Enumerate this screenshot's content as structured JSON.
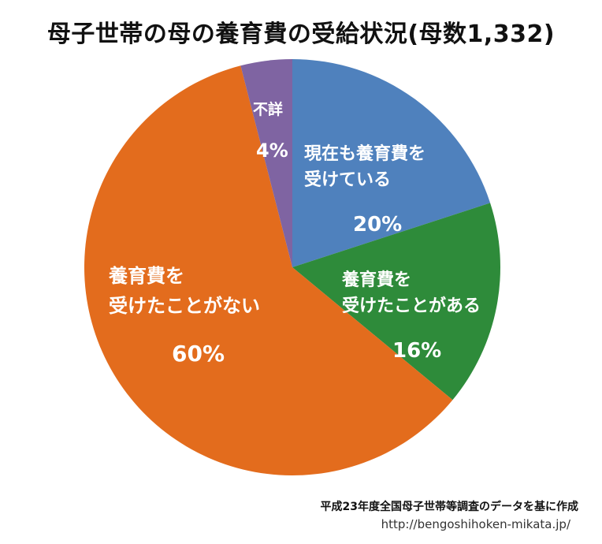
{
  "chart_data": {
    "type": "pie",
    "title": "母子世帯の母の養育費の受給状況(母数1,332)",
    "slices": [
      {
        "label": "現在も養育費を\n受けている",
        "pct_label": "20%",
        "value": 20,
        "color": "#4f81bd"
      },
      {
        "label": "養育費を\n受けたことがある",
        "pct_label": "16%",
        "value": 16,
        "color": "#2e8b3a"
      },
      {
        "label": "養育費を\n受けたことがない",
        "pct_label": "60%",
        "value": 60,
        "color": "#e36c1d"
      },
      {
        "label": "不詳",
        "pct_label": "4%",
        "value": 4,
        "color": "#7f64a2"
      }
    ]
  },
  "footer": {
    "source": "平成23年度全国母子世帯等調査のデータを基に作成",
    "url": "http://bengoshihoken-mikata.jp/"
  }
}
